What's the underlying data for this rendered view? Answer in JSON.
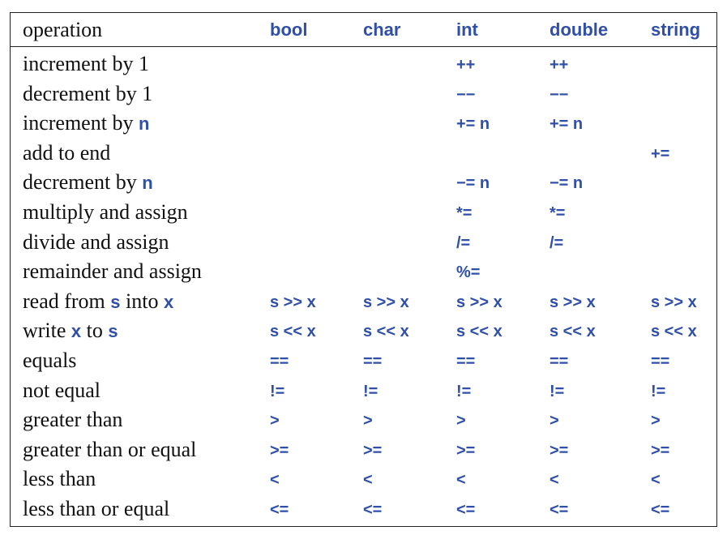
{
  "table": {
    "headers": [
      "operation",
      "bool",
      "char",
      "int",
      "double",
      "string"
    ],
    "rows": [
      {
        "op": [
          "increment by 1"
        ],
        "cells": [
          "",
          "",
          "++",
          "++",
          ""
        ]
      },
      {
        "op": [
          "decrement by 1"
        ],
        "cells": [
          "",
          "",
          "−−",
          "−−",
          ""
        ]
      },
      {
        "op": [
          "increment by ",
          "n"
        ],
        "cells": [
          "",
          "",
          "+= n",
          "+= n",
          ""
        ]
      },
      {
        "op": [
          "add to end"
        ],
        "cells": [
          "",
          "",
          "",
          "",
          "+="
        ]
      },
      {
        "op": [
          "decrement by ",
          "n"
        ],
        "cells": [
          "",
          "",
          "−= n",
          "−= n",
          ""
        ]
      },
      {
        "op": [
          "multiply and assign"
        ],
        "cells": [
          "",
          "",
          "*=",
          "*=",
          ""
        ]
      },
      {
        "op": [
          "divide and assign"
        ],
        "cells": [
          "",
          "",
          "/=",
          "/=",
          ""
        ]
      },
      {
        "op": [
          "remainder and assign"
        ],
        "cells": [
          "",
          "",
          "%=",
          "",
          ""
        ]
      },
      {
        "op": [
          "read from ",
          "s",
          " into ",
          "x"
        ],
        "cells": [
          "s >> x",
          "s >> x",
          "s >> x",
          "s >> x",
          "s >> x"
        ]
      },
      {
        "op": [
          "write ",
          "x",
          " to ",
          "s"
        ],
        "cells": [
          "s << x",
          "s << x",
          "s << x",
          "s << x",
          "s << x"
        ]
      },
      {
        "op": [
          "equals"
        ],
        "cells": [
          "==",
          "==",
          "==",
          "==",
          "=="
        ]
      },
      {
        "op": [
          "not equal"
        ],
        "cells": [
          "!=",
          "!=",
          "!=",
          "!=",
          "!="
        ]
      },
      {
        "op": [
          "greater than"
        ],
        "cells": [
          ">",
          ">",
          ">",
          ">",
          ">"
        ]
      },
      {
        "op": [
          "greater than or equal"
        ],
        "cells": [
          ">=",
          ">=",
          ">=",
          ">=",
          ">="
        ]
      },
      {
        "op": [
          "less than"
        ],
        "cells": [
          "<",
          "<",
          "<",
          "<",
          "<"
        ]
      },
      {
        "op": [
          "less than or equal"
        ],
        "cells": [
          "<=",
          "<=",
          "<=",
          "<=",
          "<="
        ]
      }
    ]
  }
}
